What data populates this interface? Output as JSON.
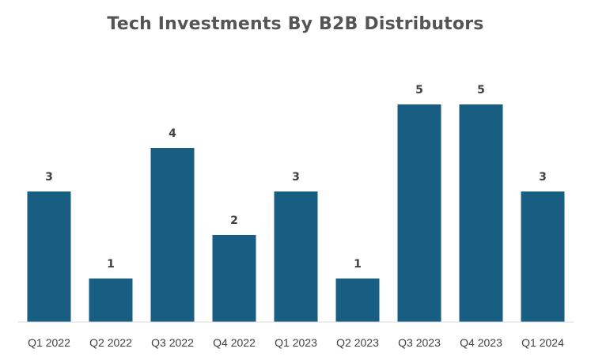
{
  "chart_data": {
    "type": "bar",
    "title": "Tech Investments By B2B Distributors",
    "categories": [
      "Q1 2022",
      "Q2 2022",
      "Q3 2022",
      "Q4 2022",
      "Q1 2023",
      "Q2 2023",
      "Q3 2023",
      "Q4 2023",
      "Q1 2024"
    ],
    "values": [
      3,
      1,
      4,
      2,
      3,
      1,
      5,
      5,
      3
    ],
    "xlabel": "",
    "ylabel": "",
    "ylim": [
      0,
      5
    ],
    "grid": false,
    "legend": "none",
    "data_labels": true
  },
  "colors": {
    "bar": "#175e82",
    "axis_line": "#d9d9d9",
    "text": "#404040",
    "title": "#555555"
  }
}
